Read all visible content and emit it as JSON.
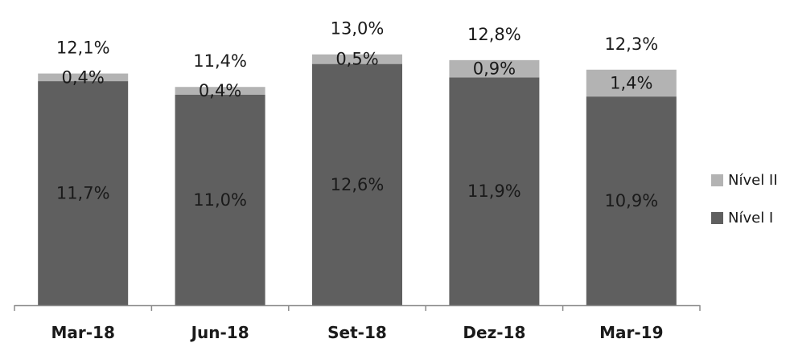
{
  "chart_data": {
    "type": "bar",
    "stacked": true,
    "categories": [
      "Mar-18",
      "Jun-18",
      "Set-18",
      "Dez-18",
      "Mar-19"
    ],
    "series": [
      {
        "name": "Nível I",
        "values": [
          11.7,
          11.0,
          12.6,
          11.9,
          10.9
        ],
        "labels": [
          "11,7%",
          "11,0%",
          "12,6%",
          "11,9%",
          "10,9%"
        ],
        "color": "#5f5f5f"
      },
      {
        "name": "Nível II",
        "values": [
          0.4,
          0.4,
          0.5,
          0.9,
          1.4
        ],
        "labels": [
          "0,4%",
          "0,4%",
          "0,5%",
          "0,9%",
          "1,4%"
        ],
        "color": "#b3b3b3"
      }
    ],
    "totals": [
      12.1,
      11.4,
      13.0,
      12.8,
      12.3
    ],
    "total_labels": [
      "12,1%",
      "11,4%",
      "13,0%",
      "12,8%",
      "12,3%"
    ],
    "title": "",
    "xlabel": "",
    "ylabel": "",
    "ylim": [
      0,
      14
    ],
    "grid": false,
    "legend_position": "right",
    "text_color": "#1a1a1a",
    "axis_color": "#8a8a8a"
  }
}
